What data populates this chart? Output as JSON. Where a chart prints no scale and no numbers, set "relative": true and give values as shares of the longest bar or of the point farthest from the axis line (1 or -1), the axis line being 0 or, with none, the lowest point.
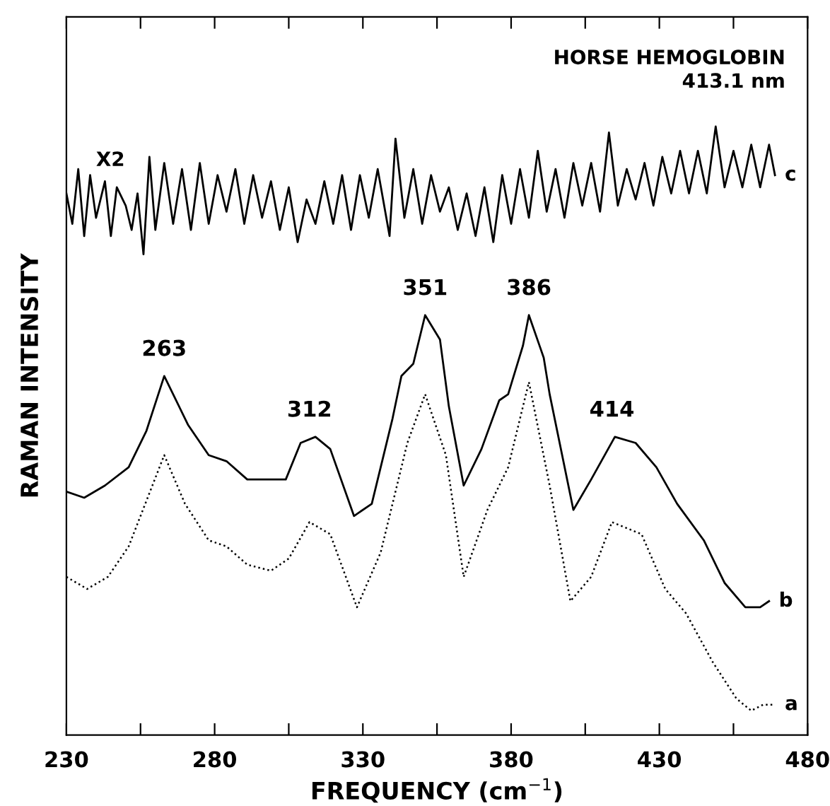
{
  "chart_data": {
    "type": "line",
    "relative": true,
    "xlabel": "FREQUENCY (cm$^{−1}$)",
    "ylabel": "RAMAN INTENSITY",
    "xlim": [
      230,
      480
    ],
    "xticks": [
      230,
      {
        "value": 255,
        "label": null
      },
      280,
      {
        "value": 305,
        "label": null
      },
      330,
      {
        "value": 355,
        "label": null
      },
      380,
      {
        "value": 405,
        "label": null
      },
      430,
      {
        "value": 455,
        "label": null
      },
      480
    ],
    "grid": false,
    "legend": false,
    "marker": "none",
    "series": [
      {
        "name": "c",
        "color": "#000000",
        "line_style": "solid",
        "x": [
          230,
          232,
          234,
          236,
          238,
          240,
          243,
          245,
          247,
          250,
          252,
          254,
          256,
          258,
          260,
          263,
          266,
          269,
          272,
          275,
          278,
          281,
          284,
          287,
          290,
          293,
          296,
          299,
          302,
          305,
          308,
          311,
          314,
          317,
          320,
          323,
          326,
          329,
          332,
          335,
          339,
          341,
          344,
          347,
          350,
          353,
          356,
          359,
          362,
          365,
          368,
          371,
          374,
          377,
          380,
          383,
          386,
          389,
          392,
          395,
          398,
          401,
          404,
          407,
          410,
          413,
          416,
          419,
          422,
          425,
          428,
          431,
          434,
          437,
          440,
          443,
          446,
          449,
          452,
          455,
          458,
          461,
          464,
          467,
          469
        ],
        "values": [
          0.89,
          0.84,
          0.93,
          0.82,
          0.92,
          0.85,
          0.91,
          0.82,
          0.9,
          0.87,
          0.83,
          0.89,
          0.79,
          0.95,
          0.83,
          0.94,
          0.84,
          0.93,
          0.83,
          0.94,
          0.84,
          0.92,
          0.86,
          0.93,
          0.84,
          0.92,
          0.85,
          0.91,
          0.83,
          0.9,
          0.81,
          0.88,
          0.84,
          0.91,
          0.84,
          0.92,
          0.83,
          0.92,
          0.85,
          0.93,
          0.82,
          0.98,
          0.85,
          0.93,
          0.84,
          0.92,
          0.86,
          0.9,
          0.83,
          0.89,
          0.82,
          0.9,
          0.81,
          0.92,
          0.84,
          0.93,
          0.85,
          0.96,
          0.86,
          0.93,
          0.85,
          0.94,
          0.87,
          0.94,
          0.86,
          0.99,
          0.87,
          0.93,
          0.88,
          0.94,
          0.87,
          0.95,
          0.89,
          0.96,
          0.89,
          0.96,
          0.89,
          1,
          0.9,
          0.96,
          0.9,
          0.97,
          0.9,
          0.97,
          0.92
        ]
      },
      {
        "name": "b",
        "color": "#000000",
        "line_style": "solid",
        "x": [
          230,
          236,
          243,
          251,
          257,
          263,
          271,
          278,
          284,
          291,
          299,
          304,
          309,
          314,
          319,
          327,
          333,
          340,
          343,
          347,
          351,
          356,
          359,
          364,
          370,
          376,
          379,
          384,
          386,
          391,
          393,
          401,
          407,
          415,
          422,
          429,
          436,
          445,
          452,
          459,
          464,
          467
        ],
        "values": [
          0.4,
          0.39,
          0.41,
          0.44,
          0.5,
          0.59,
          0.51,
          0.46,
          0.45,
          0.42,
          0.42,
          0.42,
          0.48,
          0.49,
          0.47,
          0.36,
          0.38,
          0.52,
          0.59,
          0.61,
          0.69,
          0.65,
          0.54,
          0.41,
          0.47,
          0.55,
          0.56,
          0.64,
          0.69,
          0.62,
          0.56,
          0.37,
          0.42,
          0.49,
          0.48,
          0.44,
          0.38,
          0.32,
          0.25,
          0.21,
          0.21,
          0.22
        ]
      },
      {
        "name": "a",
        "color": "#000000",
        "line_style": "dotted",
        "x": [
          230,
          237,
          244,
          251,
          259,
          263,
          270,
          278,
          284,
          291,
          299,
          305,
          312,
          319,
          328,
          336,
          345,
          351,
          358,
          364,
          372,
          379,
          386,
          393,
          400,
          407,
          414,
          424,
          432,
          439,
          448,
          456,
          461,
          465,
          469
        ],
        "values": [
          0.26,
          0.24,
          0.26,
          0.31,
          0.41,
          0.46,
          0.38,
          0.32,
          0.31,
          0.28,
          0.27,
          0.29,
          0.35,
          0.33,
          0.21,
          0.3,
          0.48,
          0.56,
          0.46,
          0.26,
          0.37,
          0.44,
          0.58,
          0.41,
          0.22,
          0.26,
          0.35,
          0.33,
          0.24,
          0.2,
          0.12,
          0.06,
          0.04,
          0.05,
          0.05
        ]
      }
    ],
    "annotations": [
      "HORSE HEMOGLOBIN\n413.1 nm",
      "X2",
      {
        "text": "263",
        "x": 263,
        "y": 0.59
      },
      {
        "text": "312",
        "x": 312,
        "y": 0.49
      },
      {
        "text": "351",
        "x": 351,
        "y": 0.69
      },
      {
        "text": "386",
        "x": 386,
        "y": 0.69
      },
      {
        "text": "414",
        "x": 414,
        "y": 0.49
      }
    ]
  }
}
